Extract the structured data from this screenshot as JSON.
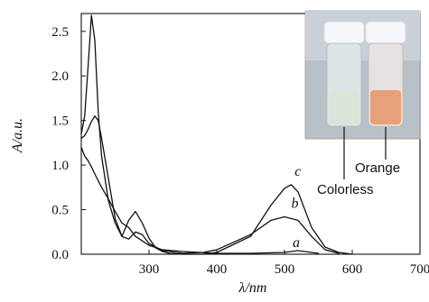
{
  "chart_data": {
    "type": "line",
    "xlabel": "λ/nm",
    "ylabel": "A/a.u.",
    "xlim": [
      200,
      700
    ],
    "ylim": [
      0,
      2.7
    ],
    "x_ticks": [
      300,
      400,
      500,
      600,
      700
    ],
    "y_ticks": [
      0.0,
      0.5,
      1.0,
      1.5,
      2.0,
      2.5
    ],
    "x_tick_labels": [
      "300",
      "400",
      "500",
      "600",
      "700"
    ],
    "y_tick_labels": [
      "0.0",
      "0.5",
      "1.0",
      "1.5",
      "2.0",
      "2.5"
    ],
    "grid": false,
    "series": [
      {
        "name": "a",
        "color": "#111111",
        "x": [
          200,
          205,
          210,
          215,
          220,
          230,
          240,
          250,
          260,
          270,
          280,
          290,
          300,
          320,
          350,
          400,
          450,
          500,
          520,
          550
        ],
        "y": [
          1.2,
          1.1,
          1.05,
          0.98,
          0.9,
          0.75,
          0.62,
          0.48,
          0.35,
          0.3,
          0.2,
          0.15,
          0.1,
          0.05,
          0.03,
          0.01,
          0.01,
          0.02,
          0.04,
          0.01
        ]
      },
      {
        "name": "b",
        "color": "#111111",
        "x": [
          200,
          205,
          210,
          215,
          220,
          225,
          230,
          240,
          250,
          260,
          270,
          280,
          290,
          300,
          320,
          350,
          380,
          400,
          450,
          480,
          500,
          520,
          540,
          560,
          580
        ],
        "y": [
          1.3,
          1.33,
          1.4,
          1.49,
          1.55,
          1.5,
          1.3,
          0.85,
          0.4,
          0.2,
          0.17,
          0.25,
          0.22,
          0.12,
          0.04,
          0.01,
          0.02,
          0.05,
          0.22,
          0.38,
          0.42,
          0.38,
          0.2,
          0.05,
          0.01
        ]
      },
      {
        "name": "c",
        "color": "#111111",
        "x": [
          200,
          205,
          210,
          215,
          220,
          225,
          230,
          240,
          250,
          260,
          270,
          280,
          290,
          300,
          310,
          320,
          330,
          350,
          380,
          400,
          450,
          480,
          500,
          510,
          520,
          530,
          540,
          560,
          580,
          600
        ],
        "y": [
          1.35,
          1.55,
          2.1,
          2.68,
          2.4,
          1.6,
          1.1,
          0.6,
          0.35,
          0.2,
          0.38,
          0.48,
          0.35,
          0.18,
          0.07,
          0.03,
          0.01,
          0.0,
          0.0,
          0.02,
          0.2,
          0.55,
          0.74,
          0.78,
          0.7,
          0.5,
          0.3,
          0.08,
          0.02,
          0.0
        ]
      }
    ],
    "curve_labels": [
      {
        "text": "a",
        "x": 512,
        "y": 0.08
      },
      {
        "text": "b",
        "x": 510,
        "y": 0.52
      },
      {
        "text": "c",
        "x": 515,
        "y": 0.88
      }
    ],
    "inset": {
      "labels": [
        "Colorless",
        "Orange"
      ],
      "left_vial_liquid": "#d8e6d6",
      "right_vial_liquid": "#e7a07a",
      "caps": "#f2f4f8",
      "background": "#b8c0c8"
    }
  }
}
